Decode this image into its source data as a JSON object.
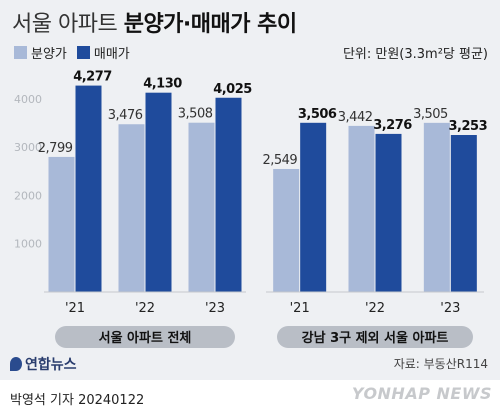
{
  "title_light": "서울 아파트",
  "title_bold": "분양가·매매가 추이",
  "unit_text": "단위: 만원(3.3m²당 평균)",
  "source_text": "자료: 부동산R114",
  "logo_text": "연합뉴스",
  "byline": "박영석 기자  20240122",
  "watermark": "YONHAP NEWS",
  "colors": {
    "presale": "#a8b9d8",
    "trade": "#1f4b9c",
    "background": "#eef0f3",
    "caption_pill": "#b9bec6"
  },
  "chart_data": [
    {
      "type": "bar",
      "caption": "서울 아파트 전체",
      "categories": [
        "'21",
        "'22",
        "'23"
      ],
      "series": [
        {
          "name": "분양가",
          "values": [
            2799,
            3476,
            3508
          ],
          "labels": [
            "2,799",
            "3,476",
            "3,508"
          ]
        },
        {
          "name": "매매가",
          "values": [
            4277,
            4130,
            4025
          ],
          "labels": [
            "4,277",
            "4,130",
            "4,025"
          ]
        }
      ],
      "yticks": [
        1000,
        2000,
        3000,
        4000
      ],
      "ytick_labels": [
        "1000",
        "2000",
        "3000",
        "4000"
      ],
      "ylim": [
        0,
        4600
      ],
      "legend": "top-left",
      "grid": false
    },
    {
      "type": "bar",
      "caption": "강남 3구 제외 서울 아파트",
      "categories": [
        "'21",
        "'22",
        "'23"
      ],
      "series": [
        {
          "name": "분양가",
          "values": [
            2549,
            3442,
            3505
          ],
          "labels": [
            "2,549",
            "3,442",
            "3,505"
          ]
        },
        {
          "name": "매매가",
          "values": [
            3506,
            3276,
            3253
          ],
          "labels": [
            "3,506",
            "3,276",
            "3,253"
          ]
        }
      ],
      "ylim": [
        0,
        4600
      ],
      "grid": false
    }
  ]
}
